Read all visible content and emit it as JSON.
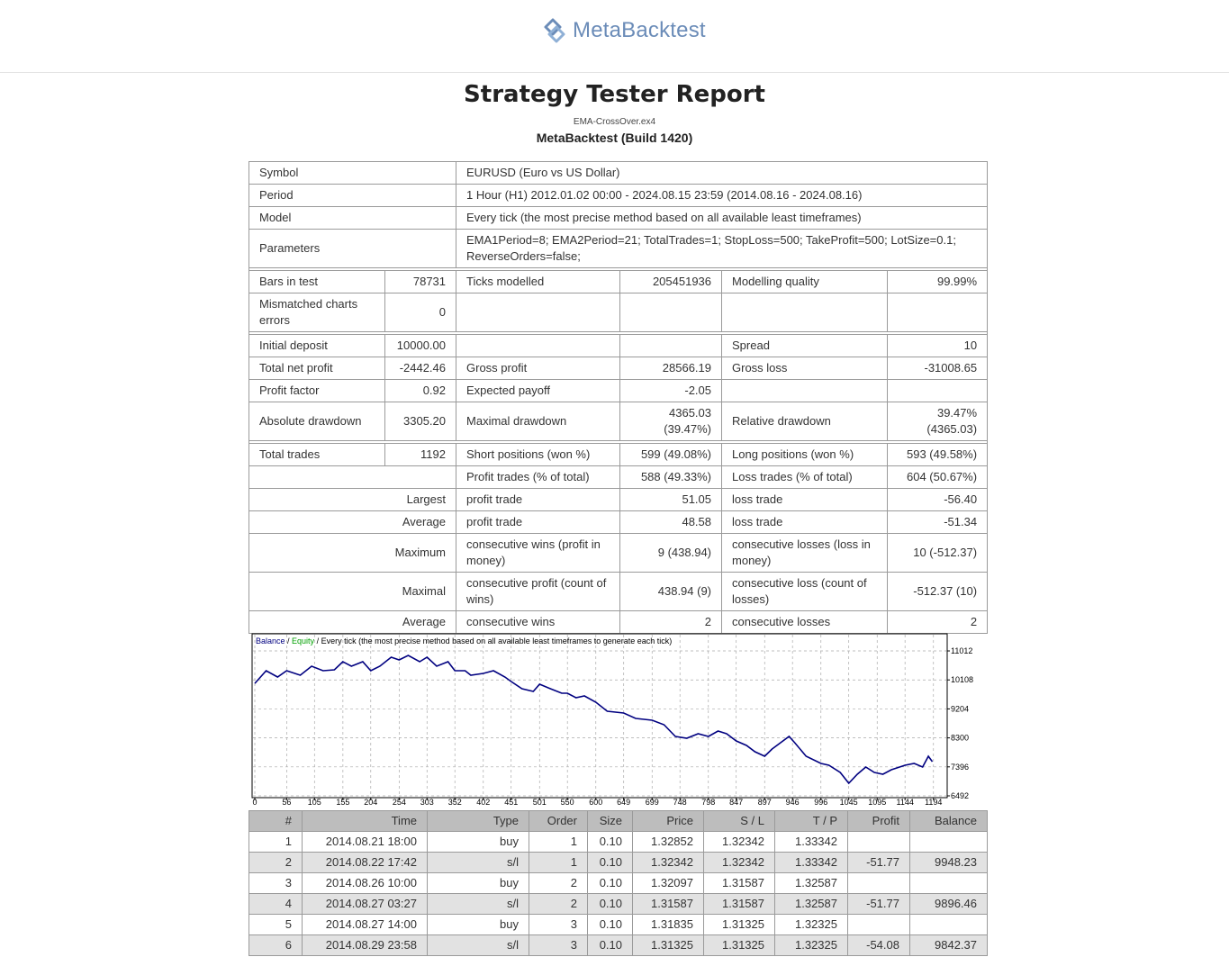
{
  "header": {
    "logo": "MetaBacktest"
  },
  "report": {
    "title": "Strategy Tester Report",
    "file": "EMA-CrossOver.ex4",
    "build": "MetaBacktest (Build 1420)"
  },
  "summary": {
    "info": [
      [
        "Symbol",
        "EURUSD (Euro vs US Dollar)"
      ],
      [
        "Period",
        "1 Hour (H1) 2012.01.02 00:00 - 2024.08.15 23:59 (2014.08.16 - 2024.08.16)"
      ],
      [
        "Model",
        "Every tick (the most precise method based on all available least timeframes)"
      ],
      [
        "Parameters",
        "EMA1Period=8; EMA2Period=21; TotalTrades=1; StopLoss=500; TakeProfit=500; LotSize=0.1; ReverseOrders=false;"
      ]
    ],
    "test": [
      [
        "Bars in test",
        "78731",
        "Ticks modelled",
        "205451936",
        "Modelling quality",
        "99.99%"
      ],
      [
        "Mismatched charts errors",
        "0"
      ]
    ],
    "results": [
      [
        "Initial deposit",
        "10000.00",
        "Spread",
        "10"
      ],
      [
        "Total net profit",
        "-2442.46",
        "Gross profit",
        "28566.19",
        "Gross loss",
        "-31008.65"
      ],
      [
        "Profit factor",
        "0.92",
        "Expected payoff",
        "-2.05"
      ],
      [
        "Absolute drawdown",
        "3305.20",
        "Maximal drawdown",
        "4365.03 (39.47%)",
        "Relative drawdown",
        "39.47% (4365.03)"
      ]
    ],
    "trades": [
      [
        "Total trades",
        "1192",
        "Short positions (won %)",
        "599 (49.08%)",
        "Long positions (won %)",
        "593 (49.58%)"
      ],
      [
        "Profit trades (% of total)",
        "588 (49.33%)",
        "Loss trades (% of total)",
        "604 (50.67%)"
      ],
      [
        "Largest",
        "profit trade",
        "51.05",
        "loss trade",
        "-56.40"
      ],
      [
        "Average",
        "profit trade",
        "48.58",
        "loss trade",
        "-51.34"
      ],
      [
        "Maximum",
        "consecutive wins (profit in money)",
        "9 (438.94)",
        "consecutive losses (loss in money)",
        "10 (-512.37)"
      ],
      [
        "Maximal",
        "consecutive profit (count of wins)",
        "438.94 (9)",
        "consecutive loss (count of losses)",
        "-512.37 (10)"
      ],
      [
        "Average",
        "consecutive wins",
        "2",
        "consecutive losses",
        "2"
      ]
    ]
  },
  "chart_data": {
    "type": "line",
    "legend_separator": " / ",
    "legend_extra": {
      "name": "Equity",
      "color": "#00a000"
    },
    "subtitle": "Every tick (the most precise method based on all available least timeframes to generate each tick)",
    "x": [
      0,
      20,
      40,
      56,
      80,
      100,
      120,
      140,
      155,
      170,
      190,
      204,
      220,
      240,
      254,
      270,
      290,
      303,
      320,
      340,
      352,
      370,
      380,
      402,
      420,
      440,
      451,
      470,
      490,
      501,
      520,
      540,
      550,
      565,
      580,
      600,
      620,
      649,
      670,
      699,
      720,
      740,
      760,
      780,
      798,
      815,
      830,
      847,
      865,
      880,
      897,
      910,
      925,
      940,
      950,
      970,
      996,
      1010,
      1030,
      1045,
      1060,
      1075,
      1090,
      1105,
      1120,
      1144,
      1160,
      1175,
      1185,
      1192
    ],
    "series": [
      {
        "name": "Balance",
        "color": "#000080",
        "values": [
          10000,
          10394,
          10198,
          10394,
          10254,
          10535,
          10394,
          10423,
          10675,
          10535,
          10675,
          10394,
          10535,
          10816,
          10731,
          10872,
          10675,
          10816,
          10535,
          10675,
          10394,
          10394,
          10254,
          10310,
          10394,
          10198,
          10058,
          9833,
          9749,
          9973,
          9833,
          9693,
          9693,
          9552,
          9609,
          9412,
          9131,
          9075,
          8907,
          8851,
          8710,
          8345,
          8289,
          8430,
          8345,
          8514,
          8430,
          8205,
          8065,
          7868,
          7728,
          7952,
          8149,
          8345,
          8149,
          7728,
          7503,
          7447,
          7223,
          6886,
          7166,
          7391,
          7223,
          7166,
          7306,
          7447,
          7503,
          7391,
          7728,
          7558
        ]
      }
    ],
    "xlim": [
      0,
      1215
    ],
    "ylim": [
      6492,
      11490
    ],
    "xticks": [
      0,
      56,
      105,
      155,
      204,
      254,
      303,
      352,
      402,
      451,
      501,
      550,
      600,
      649,
      699,
      748,
      798,
      847,
      897,
      946,
      996,
      1045,
      1095,
      1144,
      1194
    ],
    "yticks": [
      11012,
      10108,
      9204,
      8300,
      7396,
      6492
    ],
    "grid": true
  },
  "orders": {
    "columns": [
      "#",
      "Time",
      "Type",
      "Order",
      "Size",
      "Price",
      "S / L",
      "T / P",
      "Profit",
      "Balance"
    ],
    "rows": [
      [
        "1",
        "2014.08.21 18:00",
        "buy",
        "1",
        "0.10",
        "1.32852",
        "1.32342",
        "1.33342"
      ],
      [
        "2",
        "2014.08.22 17:42",
        "s/l",
        "1",
        "0.10",
        "1.32342",
        "1.32342",
        "1.33342",
        "-51.77",
        "9948.23"
      ],
      [
        "3",
        "2014.08.26 10:00",
        "buy",
        "2",
        "0.10",
        "1.32097",
        "1.31587",
        "1.32587"
      ],
      [
        "4",
        "2014.08.27 03:27",
        "s/l",
        "2",
        "0.10",
        "1.31587",
        "1.31587",
        "1.32587",
        "-51.77",
        "9896.46"
      ],
      [
        "5",
        "2014.08.27 14:00",
        "buy",
        "3",
        "0.10",
        "1.31835",
        "1.31325",
        "1.32325"
      ],
      [
        "6",
        "2014.08.29 23:58",
        "s/l",
        "3",
        "0.10",
        "1.31325",
        "1.31325",
        "1.32325",
        "-54.08",
        "9842.37"
      ]
    ]
  }
}
